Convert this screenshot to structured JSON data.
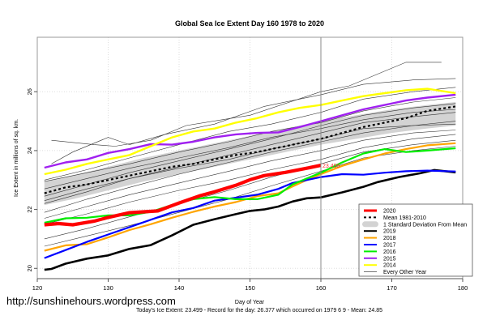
{
  "chart_data": {
    "type": "line",
    "title": "Global Sea Ice Extent Day 160 1978 to 2020",
    "xlabel": "Day of Year",
    "ylabel": "Ice Extent in millions of sq. km.",
    "xlim": [
      120,
      180
    ],
    "ylim": [
      19.65,
      27.85
    ],
    "xticks": [
      120,
      130,
      140,
      150,
      160,
      170,
      180
    ],
    "yticks": [
      20,
      22,
      24,
      26
    ],
    "grid": true,
    "current_day_marker": 160,
    "today_label": "23.499",
    "legend_position": "bottom-right",
    "footer": "Today's Ice Extent: 23.499  - Record for the day: 26.377 which occurred on 1979 6 9  - Mean: 24.85",
    "watermark": "http://sunshinehours.wordpress.com",
    "legend": [
      {
        "label": "2020",
        "color": "#ff0000",
        "style": "thick"
      },
      {
        "label": "Mean 1981-2010",
        "color": "#000000",
        "style": "dashed"
      },
      {
        "label": "1 Standard Deviation From Mean",
        "color": "#d3d3d3",
        "style": "band"
      },
      {
        "label": "2019",
        "color": "#000000",
        "style": "solid"
      },
      {
        "label": "2018",
        "color": "#ffa500",
        "style": "solid"
      },
      {
        "label": "2017",
        "color": "#0000ff",
        "style": "solid"
      },
      {
        "label": "2016",
        "color": "#00ee00",
        "style": "solid"
      },
      {
        "label": "2015",
        "color": "#a020f0",
        "style": "solid"
      },
      {
        "label": "2014",
        "color": "#ffff00",
        "style": "solid"
      },
      {
        "label": "Every Other Year",
        "color": "#555555",
        "style": "thin"
      }
    ],
    "sd_band": {
      "x": [
        121,
        125,
        130,
        135,
        140,
        145,
        150,
        155,
        160,
        165,
        170,
        175,
        179
      ],
      "lower": [
        22.15,
        22.35,
        22.65,
        22.95,
        23.2,
        23.45,
        23.7,
        23.95,
        24.2,
        24.4,
        24.6,
        24.75,
        24.85
      ],
      "upper": [
        22.95,
        23.15,
        23.45,
        23.75,
        24.0,
        24.25,
        24.5,
        24.75,
        25.0,
        25.2,
        25.4,
        25.55,
        25.65
      ]
    },
    "series": [
      {
        "name": "Mean 1981-2010",
        "color": "#000000",
        "width": 2.2,
        "dash": "3,3",
        "x": [
          121,
          124,
          127,
          130,
          133,
          136,
          139,
          142,
          145,
          148,
          151,
          154,
          157,
          160,
          163,
          166,
          169,
          172,
          175,
          179
        ],
        "values": [
          22.55,
          22.75,
          22.85,
          23.0,
          23.15,
          23.3,
          23.45,
          23.55,
          23.7,
          23.85,
          23.95,
          24.1,
          24.25,
          24.4,
          24.6,
          24.8,
          24.95,
          25.1,
          25.35,
          25.5
        ]
      },
      {
        "name": "2019",
        "color": "#000000",
        "width": 2.6,
        "x": [
          121,
          122,
          124,
          127,
          130,
          133,
          136,
          139,
          142,
          145,
          148,
          150,
          152,
          154,
          156,
          158,
          160,
          163,
          166,
          168,
          171,
          174,
          176,
          179
        ],
        "values": [
          19.95,
          19.98,
          20.16,
          20.33,
          20.44,
          20.66,
          20.79,
          21.12,
          21.48,
          21.67,
          21.84,
          21.95,
          22.0,
          22.1,
          22.27,
          22.38,
          22.41,
          22.58,
          22.77,
          22.93,
          23.1,
          23.23,
          23.34,
          23.26
        ]
      },
      {
        "name": "2018",
        "color": "#ffa500",
        "width": 2.2,
        "x": [
          121,
          124,
          127,
          130,
          133,
          136,
          139,
          142,
          145,
          148,
          151,
          154,
          156,
          158,
          160,
          163,
          166,
          169,
          172,
          175,
          179
        ],
        "values": [
          20.6,
          20.78,
          20.82,
          21.05,
          21.3,
          21.5,
          21.72,
          21.92,
          22.1,
          22.25,
          22.45,
          22.55,
          22.78,
          23.0,
          23.2,
          23.48,
          23.7,
          23.9,
          24.05,
          24.18,
          24.25
        ]
      },
      {
        "name": "2017",
        "color": "#0000ff",
        "width": 2.2,
        "x": [
          121,
          124,
          127,
          130,
          133,
          136,
          139,
          142,
          145,
          148,
          151,
          154,
          156,
          158,
          160,
          163,
          166,
          169,
          172,
          175,
          179
        ],
        "values": [
          20.35,
          20.62,
          20.9,
          21.15,
          21.4,
          21.65,
          21.9,
          22.05,
          22.3,
          22.4,
          22.5,
          22.7,
          22.9,
          23.0,
          23.1,
          23.2,
          23.18,
          23.25,
          23.3,
          23.32,
          23.29
        ]
      },
      {
        "name": "2016",
        "color": "#00ee00",
        "width": 2.2,
        "x": [
          121,
          124,
          127,
          130,
          133,
          136,
          139,
          142,
          145,
          148,
          151,
          154,
          156,
          158,
          160,
          163,
          166,
          169,
          172,
          175,
          179
        ],
        "values": [
          21.55,
          21.7,
          21.72,
          21.8,
          21.8,
          21.92,
          22.15,
          22.35,
          22.42,
          22.35,
          22.35,
          22.5,
          22.85,
          23.05,
          23.25,
          23.6,
          23.9,
          24.05,
          23.95,
          24.0,
          24.08
        ]
      },
      {
        "name": "2015",
        "color": "#a020f0",
        "width": 2.4,
        "x": [
          121,
          124,
          127,
          130,
          133,
          136,
          139,
          142,
          145,
          148,
          151,
          154,
          157,
          160,
          163,
          166,
          169,
          172,
          175,
          179
        ],
        "values": [
          23.42,
          23.6,
          23.7,
          23.92,
          24.05,
          24.22,
          24.2,
          24.3,
          24.45,
          24.55,
          24.6,
          24.62,
          24.8,
          25.0,
          25.2,
          25.4,
          25.55,
          25.7,
          25.8,
          25.9
        ]
      },
      {
        "name": "2014",
        "color": "#ffff00",
        "width": 2.4,
        "x": [
          121,
          124,
          127,
          130,
          133,
          136,
          139,
          142,
          145,
          148,
          151,
          154,
          157,
          160,
          163,
          166,
          169,
          172,
          175,
          179
        ],
        "values": [
          23.2,
          23.35,
          23.55,
          23.7,
          23.85,
          24.15,
          24.45,
          24.65,
          24.75,
          24.95,
          25.1,
          25.3,
          25.45,
          25.55,
          25.7,
          25.85,
          25.95,
          26.05,
          26.1,
          25.95
        ]
      },
      {
        "name": "2020",
        "color": "#ff0000",
        "width": 4.2,
        "x": [
          121,
          123,
          125,
          128,
          130,
          133,
          135,
          137,
          140,
          143,
          145,
          148,
          150,
          152,
          155,
          158,
          160
        ],
        "values": [
          21.48,
          21.52,
          21.48,
          21.6,
          21.73,
          21.89,
          21.92,
          21.95,
          22.22,
          22.47,
          22.6,
          22.82,
          23.01,
          23.15,
          23.26,
          23.4,
          23.499
        ]
      }
    ],
    "every_other_year": [
      {
        "x": [
          122,
          128,
          131,
          136,
          141,
          150,
          160,
          164,
          172,
          177
        ],
        "values": [
          24.35,
          24.2,
          24.15,
          24.35,
          24.85,
          25.2,
          26.0,
          26.2,
          27.0,
          27.0
        ]
      },
      {
        "x": [
          122,
          125,
          130,
          133,
          138,
          145,
          152,
          160,
          166,
          173,
          179
        ],
        "values": [
          23.55,
          23.95,
          24.45,
          24.2,
          24.55,
          24.9,
          25.5,
          25.9,
          26.25,
          26.4,
          26.45
        ]
      },
      {
        "x": [
          121,
          127,
          133,
          140,
          147,
          153,
          160,
          166,
          173,
          179
        ],
        "values": [
          23.0,
          23.35,
          23.75,
          24.2,
          24.65,
          24.9,
          25.3,
          25.75,
          26.0,
          26.15
        ]
      },
      {
        "x": [
          121,
          127,
          133,
          140,
          147,
          153,
          160,
          166,
          173,
          179
        ],
        "values": [
          22.45,
          22.85,
          23.25,
          23.65,
          24.05,
          24.4,
          24.85,
          25.2,
          25.45,
          25.6
        ]
      },
      {
        "x": [
          121,
          127,
          133,
          140,
          147,
          153,
          160,
          166,
          173,
          179
        ],
        "values": [
          22.2,
          22.6,
          23.05,
          23.45,
          23.85,
          24.2,
          24.6,
          24.95,
          25.15,
          25.3
        ]
      },
      {
        "x": [
          121,
          127,
          133,
          140,
          147,
          153,
          160,
          166,
          173,
          179
        ],
        "values": [
          21.9,
          22.35,
          22.75,
          23.2,
          23.6,
          23.95,
          24.3,
          24.6,
          24.85,
          25.0
        ]
      },
      {
        "x": [
          121,
          127,
          133,
          140,
          147,
          153,
          160,
          166,
          173,
          179
        ],
        "values": [
          21.7,
          22.1,
          22.5,
          22.9,
          23.3,
          23.65,
          24.0,
          24.35,
          24.6,
          24.7
        ]
      },
      {
        "x": [
          121,
          127,
          133,
          140,
          147,
          153,
          160,
          166,
          173,
          179
        ],
        "values": [
          21.0,
          21.35,
          21.75,
          22.2,
          22.65,
          23.1,
          23.55,
          23.95,
          24.2,
          24.35
        ]
      },
      {
        "x": [
          121,
          127,
          133,
          140,
          147,
          153,
          160,
          166,
          173,
          179
        ],
        "values": [
          20.75,
          21.1,
          21.45,
          21.9,
          22.35,
          22.8,
          23.3,
          23.75,
          24.0,
          24.15
        ]
      },
      {
        "x": [
          121,
          127,
          133,
          140,
          147,
          153,
          160,
          166,
          173,
          179
        ],
        "values": [
          22.7,
          23.05,
          23.4,
          23.75,
          24.1,
          24.45,
          24.75,
          25.05,
          25.3,
          25.4
        ]
      },
      {
        "x": [
          121,
          127,
          133,
          140,
          147,
          153,
          160,
          166,
          173,
          179
        ],
        "values": [
          22.95,
          23.25,
          23.55,
          23.95,
          24.3,
          24.65,
          24.95,
          25.35,
          25.65,
          25.8
        ]
      },
      {
        "x": [
          121,
          127,
          133,
          140,
          147,
          153,
          160,
          166,
          173,
          179
        ],
        "values": [
          22.3,
          22.7,
          23.05,
          23.4,
          23.7,
          24.05,
          24.4,
          24.75,
          24.85,
          24.9
        ]
      },
      {
        "x": [
          121,
          127,
          133,
          140,
          147,
          153,
          160,
          166,
          173,
          179
        ],
        "values": [
          21.5,
          21.85,
          22.25,
          22.65,
          23.0,
          23.35,
          23.7,
          24.1,
          24.4,
          24.55
        ]
      }
    ]
  }
}
